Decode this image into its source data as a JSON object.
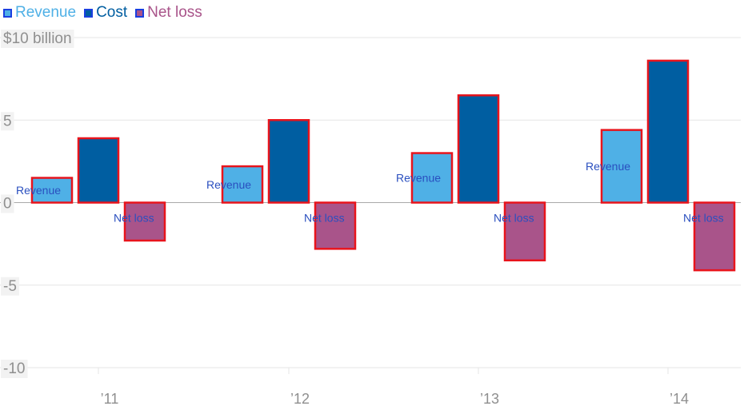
{
  "chart_data": {
    "type": "bar",
    "categories": [
      "’11",
      "’12",
      "’13",
      "’14"
    ],
    "series": [
      {
        "name": "Revenue",
        "color": "#4fb0e6",
        "values": [
          1.5,
          2.2,
          3.0,
          4.4
        ]
      },
      {
        "name": "Cost",
        "color": "#005ea1",
        "values": [
          3.9,
          5.0,
          6.5,
          8.6
        ]
      },
      {
        "name": "Net loss",
        "color": "#a9548a",
        "values": [
          -2.3,
          -2.8,
          -3.5,
          -4.1
        ]
      }
    ],
    "bar_labels": {
      "Revenue": "Revenue",
      "Net loss": "Net loss"
    },
    "y_ticks": [
      {
        "value": 10,
        "label": "$10 billion"
      },
      {
        "value": 5,
        "label": "5"
      },
      {
        "value": 0,
        "label": "0"
      },
      {
        "value": -5,
        "label": "-5"
      },
      {
        "value": -10,
        "label": "-10"
      }
    ],
    "ylim": [
      -10,
      10
    ],
    "title": "",
    "xlabel": "",
    "ylabel": "",
    "grid": true,
    "legend_position": "top-left",
    "bar_outline_color": "#e8141c",
    "grid_color": "#e6e6e6",
    "zero_line_color": "#aaaaaa"
  }
}
